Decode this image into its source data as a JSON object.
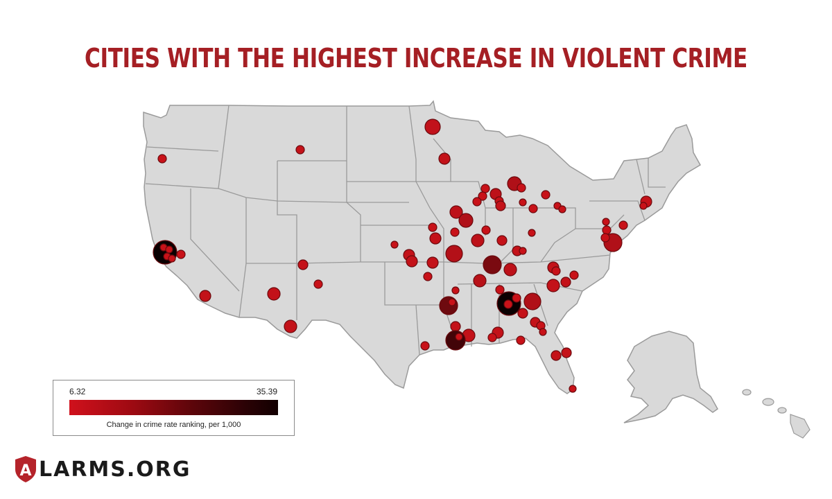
{
  "title": "CITIES WITH THE HIGHEST INCREASE IN VIOLENT CRIME",
  "legend": {
    "min_label": "6.32",
    "max_label": "35.39",
    "caption": "Change in crime rate ranking, per 1,000",
    "color_low": "#d0111c",
    "color_high": "#120001"
  },
  "logo": {
    "text": "LARMS.ORG",
    "shield_letter": "A",
    "shield_color": "#b5232a"
  },
  "map": {
    "land_color": "#d9d9d9",
    "border_color": "#9a9a9a"
  }
}
